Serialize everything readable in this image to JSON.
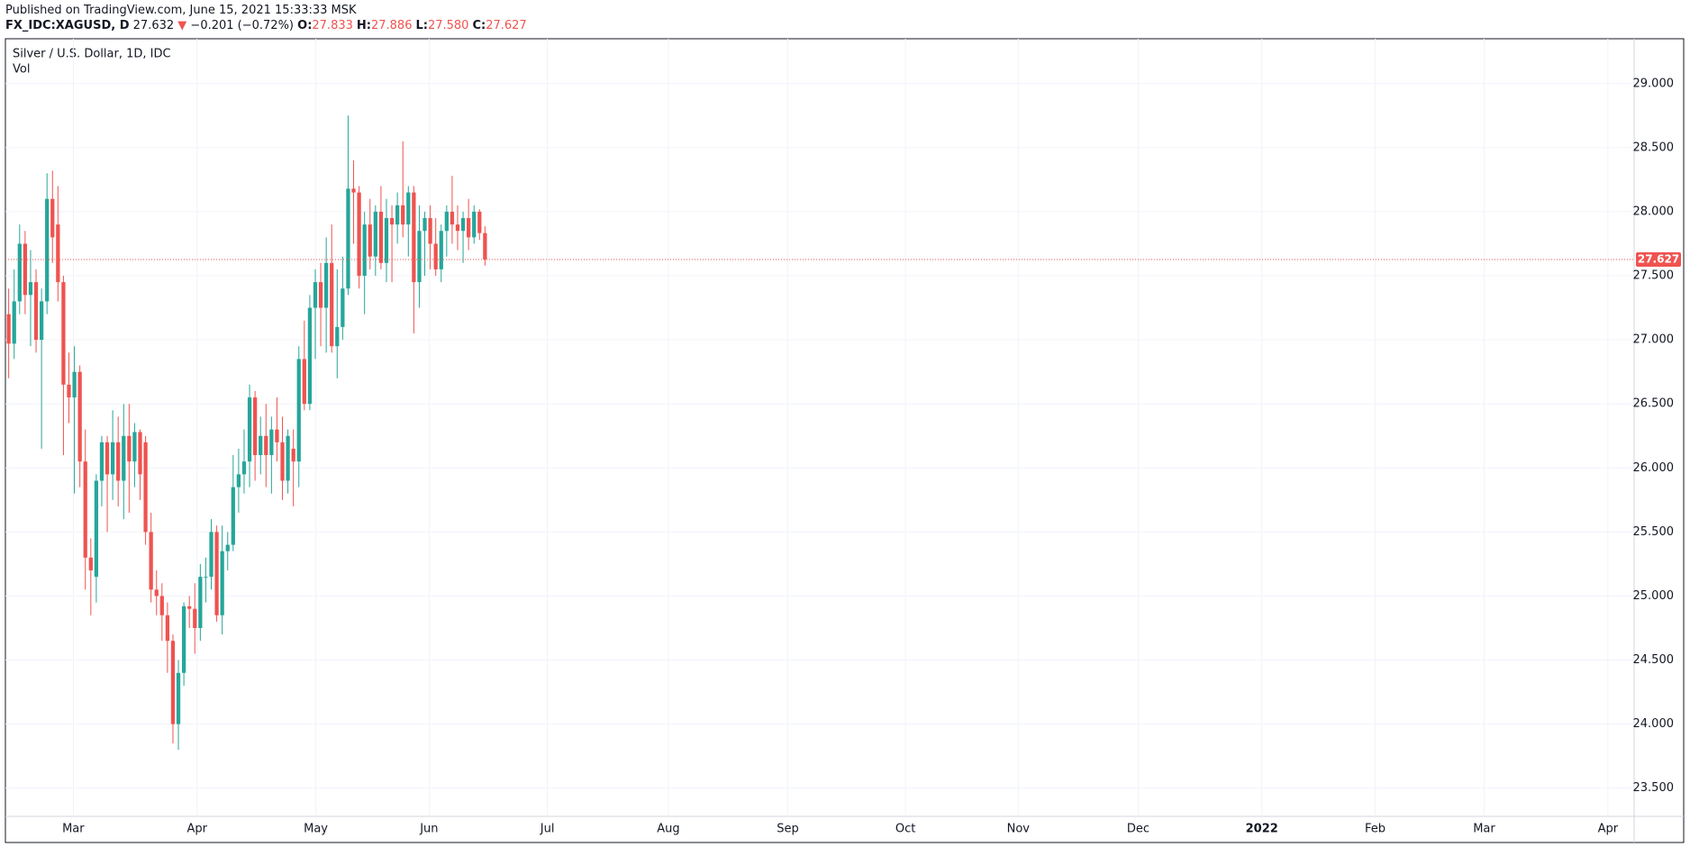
{
  "header": {
    "published": "Published on TradingView.com, June 15, 2021 15:33:33 MSK",
    "symbol": "FX_IDC:XAGUSD, D",
    "last": "27.632",
    "change": "−0.201 (−0.72%)",
    "ohlc": [
      {
        "label": "O:",
        "value": "27.833"
      },
      {
        "label": "H:",
        "value": "27.886"
      },
      {
        "label": "L:",
        "value": "27.580"
      },
      {
        "label": "C:",
        "value": "27.627"
      }
    ]
  },
  "chart_data": {
    "type": "candlestick",
    "title": "Silver / U.S. Dollar, 1D, IDC",
    "subtitle": "Vol",
    "up_color": "#26a69a",
    "down_color": "#ef5350",
    "grid": true,
    "open": [
      27.2,
      26.97,
      27.3,
      27.75,
      27.35,
      27.45,
      27.0,
      27.3,
      28.1,
      27.9,
      27.45,
      26.65,
      26.55,
      26.75,
      26.05,
      25.3,
      25.15,
      25.9,
      26.2,
      25.95,
      26.2,
      25.9,
      26.25,
      26.05,
      26.28,
      26.2,
      25.5,
      25.05,
      25.0,
      24.85,
      24.65,
      24.0,
      24.4,
      24.92,
      24.9,
      24.75,
      25.15,
      25.15,
      25.5,
      24.85,
      25.35,
      25.4,
      25.85,
      25.95,
      26.05,
      26.55,
      26.1,
      26.25,
      26.1,
      26.3,
      26.2,
      25.9,
      26.15,
      26.05,
      26.85,
      26.5,
      27.25,
      27.45,
      27.25,
      27.6,
      26.95,
      27.1,
      27.4,
      28.18,
      28.15,
      27.5,
      27.9,
      27.65,
      28.0,
      27.6,
      27.95,
      27.9,
      28.05,
      27.9,
      28.15,
      27.45,
      27.85,
      27.95,
      27.75,
      27.55,
      27.85,
      28.0,
      27.9,
      27.85,
      27.95,
      27.8,
      28.0,
      27.833
    ],
    "high": [
      27.4,
      27.55,
      27.9,
      27.85,
      27.7,
      27.55,
      27.4,
      28.3,
      28.32,
      28.2,
      27.5,
      26.9,
      26.95,
      26.8,
      26.3,
      25.45,
      25.95,
      26.25,
      26.25,
      26.45,
      26.4,
      26.5,
      26.5,
      26.35,
      26.3,
      26.25,
      25.65,
      25.2,
      25.1,
      24.95,
      24.7,
      24.5,
      24.95,
      25.0,
      25.1,
      25.25,
      25.3,
      25.6,
      25.55,
      25.55,
      25.5,
      26.1,
      26.15,
      26.3,
      26.65,
      26.6,
      26.4,
      26.5,
      26.4,
      26.55,
      26.4,
      26.3,
      26.3,
      26.95,
      27.15,
      27.35,
      27.55,
      27.6,
      27.8,
      27.9,
      27.55,
      27.65,
      28.75,
      28.4,
      28.2,
      28.0,
      28.1,
      28.05,
      28.2,
      28.1,
      28.05,
      28.15,
      28.55,
      28.2,
      28.2,
      28.05,
      28.0,
      28.05,
      27.95,
      27.9,
      28.05,
      28.28,
      28.05,
      28.0,
      28.1,
      28.05,
      28.02,
      27.886
    ],
    "low": [
      26.7,
      26.85,
      27.2,
      27.2,
      26.95,
      26.9,
      26.15,
      27.2,
      27.6,
      27.3,
      26.1,
      26.35,
      25.8,
      25.85,
      25.05,
      24.85,
      24.95,
      25.7,
      25.5,
      25.75,
      25.7,
      25.6,
      25.65,
      25.85,
      25.75,
      25.4,
      24.95,
      24.85,
      24.65,
      24.4,
      23.85,
      23.8,
      24.3,
      24.75,
      24.55,
      24.65,
      24.95,
      25.05,
      24.8,
      24.7,
      25.2,
      25.35,
      25.65,
      25.8,
      25.85,
      25.9,
      25.95,
      25.85,
      25.8,
      26.05,
      25.75,
      25.8,
      25.7,
      25.85,
      26.45,
      26.45,
      26.85,
      26.95,
      26.9,
      26.9,
      26.7,
      27.0,
      27.35,
      27.75,
      27.4,
      27.2,
      27.55,
      27.5,
      27.55,
      27.45,
      27.45,
      27.75,
      27.8,
      27.65,
      27.05,
      27.25,
      27.5,
      27.55,
      27.5,
      27.45,
      27.65,
      27.75,
      27.7,
      27.6,
      27.7,
      27.75,
      27.78,
      27.58
    ],
    "close": [
      26.97,
      27.3,
      27.75,
      27.35,
      27.45,
      27.0,
      27.3,
      28.1,
      27.8,
      27.45,
      26.65,
      26.55,
      26.75,
      26.05,
      25.3,
      25.2,
      25.9,
      26.2,
      25.95,
      26.2,
      25.9,
      26.25,
      26.05,
      26.28,
      25.95,
      25.5,
      25.05,
      25.0,
      24.85,
      24.65,
      24.0,
      24.4,
      24.92,
      24.9,
      24.75,
      25.15,
      25.15,
      25.5,
      24.85,
      25.35,
      25.4,
      25.85,
      25.95,
      26.05,
      26.55,
      26.1,
      26.25,
      26.1,
      26.3,
      26.2,
      25.9,
      26.25,
      26.05,
      26.85,
      26.5,
      27.25,
      27.45,
      27.25,
      27.6,
      26.95,
      27.1,
      27.4,
      28.18,
      28.15,
      27.5,
      27.9,
      27.65,
      28.0,
      27.6,
      27.95,
      27.9,
      28.05,
      27.9,
      28.15,
      27.45,
      27.85,
      27.95,
      27.75,
      27.55,
      27.85,
      28.0,
      27.9,
      27.85,
      27.95,
      27.8,
      28.0,
      27.833,
      27.627
    ],
    "xlim": [
      -0.6,
      296.9
    ],
    "xticks": [
      {
        "value": 11.8,
        "label": "Mar"
      },
      {
        "value": 34.4,
        "label": "Apr"
      },
      {
        "value": 56.1,
        "label": "May"
      },
      {
        "value": 76.8,
        "label": "Jun"
      },
      {
        "value": 98.4,
        "label": "Jul"
      },
      {
        "value": 120.5,
        "label": "Aug"
      },
      {
        "value": 142.3,
        "label": "Sep"
      },
      {
        "value": 163.8,
        "label": "Oct"
      },
      {
        "value": 184.4,
        "label": "Nov"
      },
      {
        "value": 206.3,
        "label": "Dec"
      },
      {
        "value": 228.9,
        "label": "2022"
      },
      {
        "value": 249.6,
        "label": "Feb"
      },
      {
        "value": 269.5,
        "label": "Mar"
      },
      {
        "value": 292.1,
        "label": "Apr"
      }
    ],
    "ylim": [
      23.28,
      29.35
    ],
    "yticks": [
      {
        "value": 23.5,
        "label": "23.500"
      },
      {
        "value": 24,
        "label": "24.000"
      },
      {
        "value": 24.5,
        "label": "24.500"
      },
      {
        "value": 25,
        "label": "25.000"
      },
      {
        "value": 25.5,
        "label": "25.500"
      },
      {
        "value": 26,
        "label": "26.000"
      },
      {
        "value": 26.5,
        "label": "26.500"
      },
      {
        "value": 27,
        "label": "27.000"
      },
      {
        "value": 27.5,
        "label": "27.500"
      },
      {
        "value": 28,
        "label": "28.000"
      },
      {
        "value": 28.5,
        "label": "28.500"
      },
      {
        "value": 29,
        "label": "29.000"
      }
    ]
  }
}
